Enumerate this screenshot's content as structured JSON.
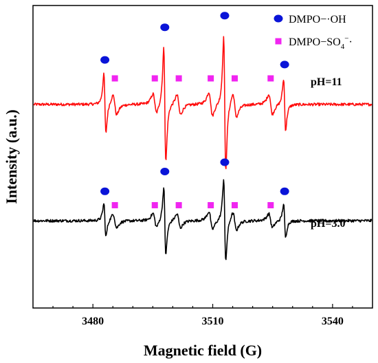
{
  "chart_data": {
    "type": "line",
    "xlabel": "Magnetic field  (G)",
    "ylabel": "Intensity  (a.u.)",
    "xlim": [
      3465,
      3550
    ],
    "x_ticks": [
      3480,
      3510,
      3540
    ],
    "x_tick_labels": [
      "3480",
      "3510",
      "3540"
    ],
    "y_ticks_shown": false,
    "grid": false,
    "legend": {
      "placement": "top-right",
      "entries": [
        {
          "marker": "circle",
          "color": "#0a14d8",
          "label_main": "DMPO−·OH",
          "label_parts": [
            "DMPO−·OH"
          ]
        },
        {
          "marker": "square",
          "color": "#f025f0",
          "label_main": "DMPO−SO",
          "label_sub": "4",
          "label_sup": "−",
          "label_tail": "·"
        }
      ]
    },
    "series": [
      {
        "name": "pH=11",
        "color": "#ff0d0d",
        "baseline": 1.0,
        "hyperfine_lines": [
          3483.0,
          3498.0,
          3513.0,
          3528.0
        ],
        "hyperfine_amplitudes": [
          0.3,
          0.58,
          0.68,
          0.26
        ],
        "secondary_lines": [
          3485.5,
          3495.5,
          3501.5,
          3509.5,
          3515.5,
          3524.5
        ],
        "secondary_amplitudes": [
          0.1,
          0.1,
          0.1,
          0.12,
          0.12,
          0.1
        ],
        "noise_level": 0.012,
        "circle_markers_x": [
          3483,
          3498,
          3513,
          3528
        ],
        "square_markers_x": [
          3485.5,
          3495.5,
          3501.5,
          3509.5,
          3515.5,
          3524.5
        ]
      },
      {
        "name": "pH=3.0",
        "color": "#000000",
        "baseline": 0.0,
        "hyperfine_lines": [
          3483.0,
          3498.0,
          3513.0,
          3528.0
        ],
        "hyperfine_amplitudes": [
          0.17,
          0.34,
          0.42,
          0.17
        ],
        "secondary_lines": [
          3485.5,
          3495.5,
          3501.5,
          3509.5,
          3515.5,
          3524.5
        ],
        "secondary_amplitudes": [
          0.07,
          0.07,
          0.07,
          0.09,
          0.09,
          0.07
        ],
        "noise_level": 0.012,
        "circle_markers_x": [
          3483,
          3498,
          3513,
          3528
        ],
        "square_markers_x": [
          3485.5,
          3495.5,
          3501.5,
          3509.5,
          3515.5,
          3524.5
        ]
      }
    ],
    "trace_labels": [
      "pH=11",
      "pH=3.0"
    ]
  }
}
